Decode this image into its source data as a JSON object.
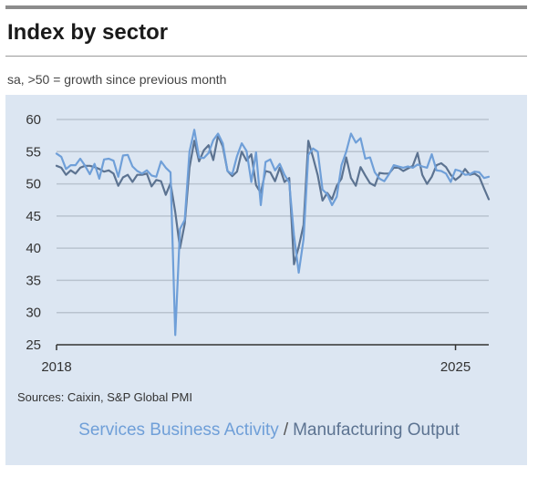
{
  "title": "Index by sector",
  "subtitle": "sa, >50 = growth since previous month",
  "source": "Sources: Caixin, S&P Global PMI",
  "colors": {
    "background": "#dce6f2",
    "services": "#6f9fd8",
    "manufacturing": "#5c7391",
    "grid": "#b9c3cf",
    "axis": "#333333"
  },
  "chart_data": {
    "type": "line",
    "title": "",
    "xlabel": "",
    "ylabel": "",
    "ylim": [
      25,
      60
    ],
    "yticks": [
      25,
      30,
      35,
      40,
      45,
      50,
      55,
      60
    ],
    "xticks": [
      "2018",
      "2025"
    ],
    "x_start": "2018-01",
    "x_end": "2025-06",
    "frequency": "monthly",
    "grid": true,
    "legend": "bottom",
    "series": [
      {
        "name": "Services Business Activity",
        "values": [
          54.7,
          54.2,
          52.3,
          52.9,
          52.9,
          53.9,
          52.8,
          51.5,
          53.1,
          50.8,
          53.8,
          53.9,
          53.6,
          51.1,
          54.4,
          54.5,
          52.7,
          52.0,
          51.6,
          52.1,
          51.3,
          51.1,
          53.5,
          52.5,
          51.8,
          26.5,
          43.0,
          44.4,
          55.0,
          58.4,
          54.1,
          54.0,
          54.8,
          56.8,
          57.8,
          56.3,
          52.0,
          51.5,
          54.3,
          56.3,
          55.1,
          50.3,
          54.9,
          46.7,
          53.4,
          53.8,
          52.1,
          53.1,
          51.4,
          50.2,
          42.0,
          36.2,
          41.4,
          54.5,
          55.5,
          55.0,
          49.1,
          48.4,
          46.7,
          48.0,
          52.9,
          55.0,
          57.8,
          56.4,
          57.1,
          53.9,
          54.1,
          51.8,
          50.8,
          50.4,
          51.5,
          52.9,
          52.7,
          52.5,
          52.7,
          52.5,
          53.0,
          52.7,
          52.5,
          54.6,
          52.1,
          52.0,
          51.6,
          50.3,
          52.2,
          52.0,
          51.4,
          51.5,
          51.9,
          51.8,
          50.9,
          51.1
        ]
      },
      {
        "name": "Manufacturing Output",
        "values": [
          52.8,
          52.5,
          51.4,
          52.1,
          51.6,
          52.5,
          52.8,
          52.8,
          52.6,
          52.3,
          51.9,
          52.1,
          51.6,
          49.7,
          51.0,
          51.4,
          50.3,
          51.4,
          51.4,
          51.6,
          49.6,
          50.6,
          50.4,
          48.3,
          50.1,
          45.6,
          40.0,
          43.8,
          52.5,
          56.7,
          53.5,
          55.2,
          56.0,
          53.7,
          57.5,
          55.8,
          52.0,
          51.2,
          51.9,
          55.0,
          53.6,
          54.6,
          49.8,
          48.6,
          52.0,
          51.8,
          50.4,
          52.5,
          50.3,
          50.9,
          37.5,
          40.2,
          43.6,
          56.7,
          54.1,
          51.3,
          47.4,
          48.6,
          47.6,
          49.7,
          50.8,
          54.1,
          50.9,
          49.7,
          52.6,
          51.3,
          50.1,
          49.7,
          51.7,
          51.6,
          51.6,
          52.5,
          52.5,
          52.0,
          52.4,
          52.8,
          54.8,
          51.4,
          50.0,
          51.1,
          52.9,
          53.2,
          52.6,
          51.4,
          50.6,
          51.2,
          52.3,
          51.4,
          51.6,
          51.1,
          49.3,
          47.6
        ]
      }
    ]
  }
}
